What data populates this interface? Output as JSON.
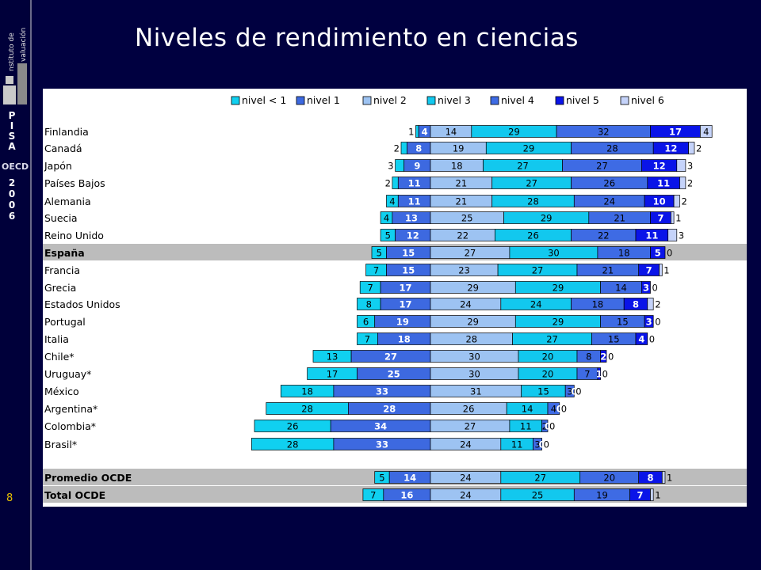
{
  "sidebar": {
    "logo_text": "Instituto de Evaluación",
    "pisa_letters": [
      "P",
      "I",
      "S",
      "A"
    ],
    "oecd": "OECD",
    "year_digits": [
      "2",
      "0",
      "0",
      "6"
    ],
    "page_number": "8"
  },
  "title": "Niveles de rendimiento en ciencias",
  "colors": {
    "nivel_lt1": "#10D0F0",
    "nivel_1": "#3D69E0",
    "nivel_2": "#9DC3F2",
    "nivel_3": "#12C8EE",
    "nivel_4": "#3E6BE4",
    "nivel_5": "#0A14E8",
    "nivel_6": "#C5D3FA",
    "highlight_row": "#bcbcbc"
  },
  "chart_data": {
    "type": "bar",
    "orientation": "horizontal-stacked-diverging",
    "title": "",
    "legend_position": "top",
    "series": [
      {
        "name": "nivel < 1"
      },
      {
        "name": "nivel 1"
      },
      {
        "name": "nivel 2"
      },
      {
        "name": "nivel 3"
      },
      {
        "name": "nivel 4"
      },
      {
        "name": "nivel 5"
      },
      {
        "name": "nivel 6"
      }
    ],
    "rows": [
      {
        "label": "Finlandia",
        "values": [
          1,
          4,
          14,
          29,
          32,
          17,
          4
        ]
      },
      {
        "label": "Canadá",
        "values": [
          2,
          8,
          19,
          29,
          28,
          12,
          2
        ]
      },
      {
        "label": "Japón",
        "values": [
          3,
          9,
          18,
          27,
          27,
          12,
          3
        ]
      },
      {
        "label": "Países Bajos",
        "values": [
          2,
          11,
          21,
          27,
          26,
          11,
          2
        ]
      },
      {
        "label": "Alemania",
        "values": [
          4,
          11,
          21,
          28,
          24,
          10,
          2
        ]
      },
      {
        "label": "Suecia",
        "values": [
          4,
          13,
          25,
          29,
          21,
          7,
          1
        ]
      },
      {
        "label": "Reino Unido",
        "values": [
          5,
          12,
          22,
          26,
          22,
          11,
          3
        ]
      },
      {
        "label": "España",
        "values": [
          5,
          15,
          27,
          30,
          18,
          5,
          0
        ],
        "highlight": true
      },
      {
        "label": "Francia",
        "values": [
          7,
          15,
          23,
          27,
          21,
          7,
          1
        ]
      },
      {
        "label": "Grecia",
        "values": [
          7,
          17,
          29,
          29,
          14,
          3,
          0
        ]
      },
      {
        "label": "Estados Unidos",
        "values": [
          8,
          17,
          24,
          24,
          18,
          8,
          2
        ]
      },
      {
        "label": "Portugal",
        "values": [
          6,
          19,
          29,
          29,
          15,
          3,
          0
        ]
      },
      {
        "label": "Italia",
        "values": [
          7,
          18,
          28,
          27,
          15,
          4,
          0
        ]
      },
      {
        "label": "Chile*",
        "values": [
          13,
          27,
          30,
          20,
          8,
          2,
          0
        ]
      },
      {
        "label": "Uruguay*",
        "values": [
          17,
          25,
          30,
          20,
          7,
          1,
          0
        ]
      },
      {
        "label": "México",
        "values": [
          18,
          33,
          31,
          15,
          3,
          0,
          0
        ]
      },
      {
        "label": "Argentina*",
        "values": [
          28,
          28,
          26,
          14,
          4,
          0,
          0
        ]
      },
      {
        "label": "Colombia*",
        "values": [
          26,
          34,
          27,
          11,
          2,
          0,
          0
        ]
      },
      {
        "label": "Brasil*",
        "values": [
          28,
          33,
          24,
          11,
          3,
          0,
          0
        ]
      },
      {
        "label": "Promedio OCDE",
        "values": [
          5,
          14,
          24,
          27,
          20,
          8,
          1
        ],
        "highlight": true,
        "gap_before": true
      },
      {
        "label": "Total OCDE",
        "values": [
          7,
          16,
          24,
          25,
          19,
          7,
          1
        ],
        "highlight": true
      }
    ]
  }
}
